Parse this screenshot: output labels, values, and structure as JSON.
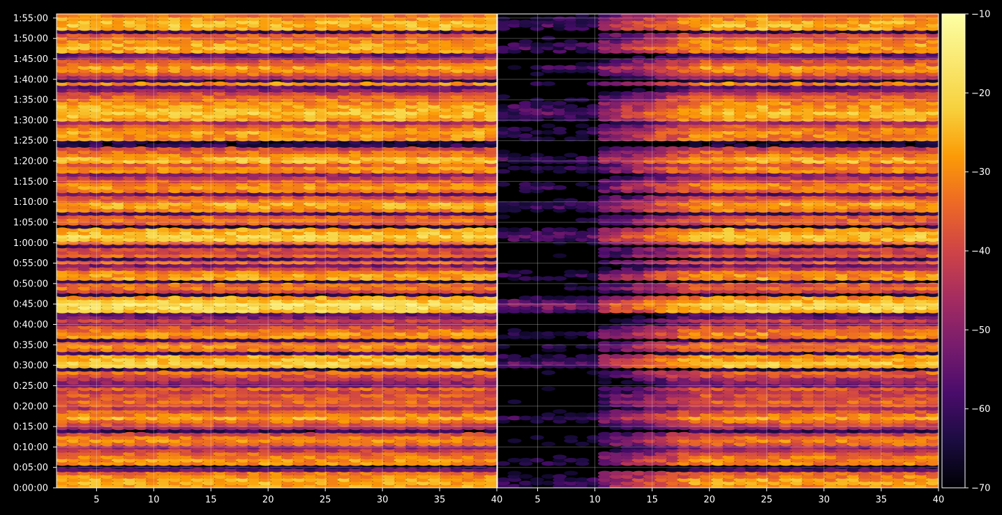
{
  "chart_data": {
    "type": "heatmap",
    "colormap": "inferno",
    "background": "#000000",
    "grid": true,
    "legend": "colorbar-right",
    "panels": [
      {
        "id": "left",
        "x_range": [
          1.5,
          40
        ],
        "x_ticks": [
          5,
          10,
          15,
          20,
          25,
          30,
          35,
          40
        ],
        "x_tick_labels": [
          "5",
          "10",
          "15",
          "20",
          "25",
          "30",
          "35",
          "40"
        ],
        "description_profile": "bright"
      },
      {
        "id": "right",
        "x_range": [
          1.5,
          40
        ],
        "x_ticks": [
          5,
          10,
          15,
          20,
          25,
          30,
          35,
          40
        ],
        "x_tick_labels": [
          "5",
          "10",
          "15",
          "20",
          "25",
          "30",
          "35",
          "40"
        ],
        "description_profile": "dark-low-x"
      }
    ],
    "y_axis": {
      "unit": "time",
      "range_seconds": [
        0,
        6900
      ],
      "ticks_seconds": [
        0,
        300,
        600,
        900,
        1200,
        1500,
        1800,
        2100,
        2400,
        2700,
        3000,
        3300,
        3600,
        3900,
        4200,
        4500,
        4800,
        5100,
        5400,
        5700,
        6000,
        6300,
        6600,
        6900
      ],
      "tick_labels": [
        "0:00:00",
        "0:05:00",
        "0:10:00",
        "0:15:00",
        "0:20:00",
        "0:25:00",
        "0:30:00",
        "0:35:00",
        "0:40:00",
        "0:45:00",
        "0:50:00",
        "0:55:00",
        "1:00:00",
        "1:05:00",
        "1:10:00",
        "1:15:00",
        "1:20:00",
        "1:25:00",
        "1:30:00",
        "1:35:00",
        "1:40:00",
        "1:45:00",
        "1:50:00",
        "1:55:00"
      ]
    },
    "colorbar": {
      "range": [
        -70,
        -10
      ],
      "ticks": [
        -70,
        -60,
        -50,
        -40,
        -30,
        -20,
        -10
      ],
      "tick_labels": [
        "−70",
        "−60",
        "−50",
        "−40",
        "−30",
        "−20",
        "−10"
      ]
    },
    "row_levels_dB": [
      -28,
      -26,
      -27,
      -30,
      -33,
      -55,
      -67,
      -30,
      -29,
      -31,
      -35,
      -42,
      -47,
      -34,
      -30,
      -33,
      -40,
      -62,
      -45,
      -38,
      -32,
      -26,
      -31,
      -36,
      -44,
      -37,
      -34,
      -38,
      -36,
      -41,
      -35,
      -52,
      -48,
      -44,
      -38,
      -33,
      -62,
      -24,
      -22,
      -24,
      -27,
      -60,
      -33,
      -30,
      -35,
      -58,
      -30,
      -29,
      -33,
      -38,
      -48,
      -40,
      -52,
      -55,
      -22,
      -19,
      -18,
      -22,
      -28,
      -65,
      -40,
      -33,
      -35,
      -63,
      -27,
      -28,
      -31,
      -42,
      -52,
      -36,
      -58,
      -35,
      -40,
      -38,
      -60,
      -33,
      -23,
      -21,
      -24,
      -27,
      -64,
      -36,
      -33,
      -36,
      -58,
      -31,
      -27,
      -26,
      -34,
      -38,
      -55,
      -32,
      -29,
      -31,
      -37,
      -43,
      -50,
      -30,
      -29,
      -35,
      -25,
      -25,
      -31,
      -34,
      -40,
      -62,
      -65,
      -30,
      -29,
      -27,
      -30,
      -36,
      -45,
      -28,
      -25,
      -23,
      -25,
      -27,
      -29,
      -33,
      -35,
      -40,
      -50,
      -55,
      -30,
      -62,
      -45,
      -35,
      -30,
      -27,
      -33,
      -38,
      -50,
      -55,
      -28,
      -25,
      -27,
      -30,
      -34,
      -37,
      -60,
      -26,
      -24,
      -25,
      -28,
      -32
    ]
  }
}
